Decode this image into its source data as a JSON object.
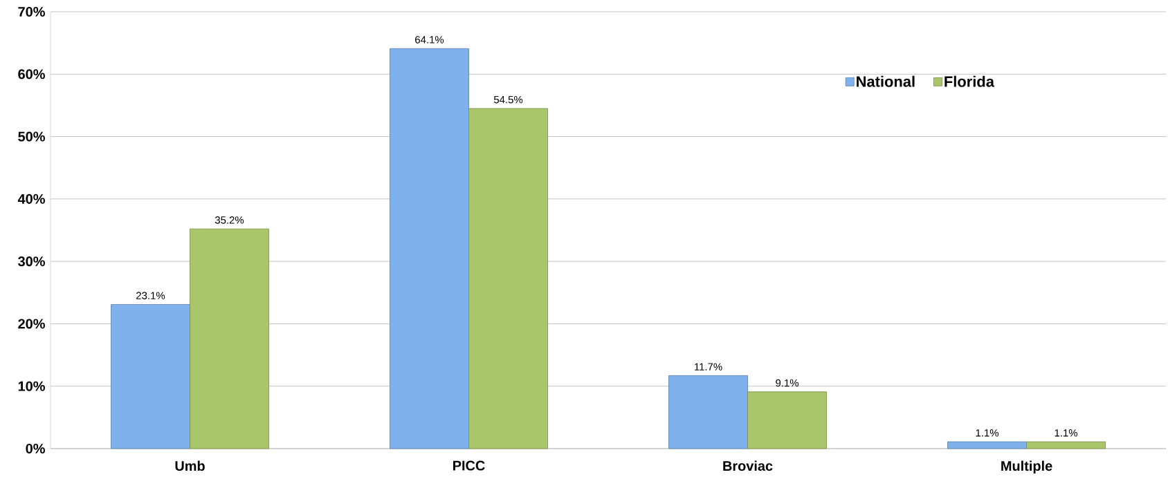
{
  "chart_data": {
    "type": "bar",
    "categories": [
      "Umb",
      "PICC",
      "Broviac",
      "Multiple"
    ],
    "series": [
      {
        "name": "National",
        "color": "#7fb2ec",
        "values": [
          23.1,
          64.1,
          11.7,
          1.1
        ],
        "value_labels": [
          "23.1%",
          "64.1%",
          "11.7%",
          "1.1%"
        ]
      },
      {
        "name": "Florida",
        "color": "#a9c76a",
        "values": [
          35.2,
          54.5,
          9.1,
          1.1
        ],
        "value_labels": [
          "35.2%",
          "54.5%",
          "9.1%",
          "1.1%"
        ]
      }
    ],
    "ylim": [
      0,
      70
    ],
    "yticks": [
      {
        "value": 0,
        "label": "0%"
      },
      {
        "value": 10,
        "label": "10%"
      },
      {
        "value": 20,
        "label": "20%"
      },
      {
        "value": 30,
        "label": "30%"
      },
      {
        "value": 40,
        "label": "40%"
      },
      {
        "value": 50,
        "label": "50%"
      },
      {
        "value": 60,
        "label": "60%"
      },
      {
        "value": 70,
        "label": "70%"
      }
    ],
    "grid": "y",
    "legend": "top right"
  }
}
